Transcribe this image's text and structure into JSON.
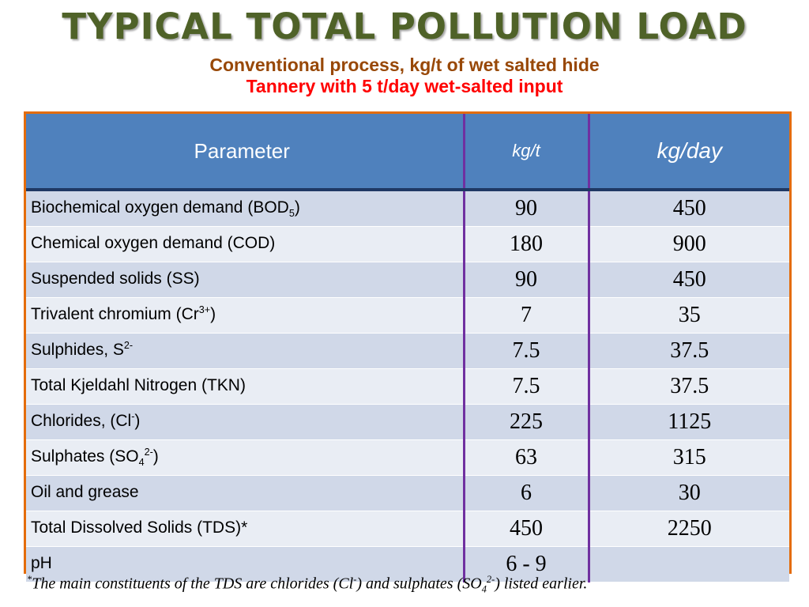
{
  "title": "TYPICAL TOTAL POLLUTION LOAD",
  "subtitle": "Conventional process, kg/t of wet salted hide",
  "subtitle2": "Tannery with 5 t/day wet-salted input",
  "colors": {
    "title": "#4f6228",
    "subtitle": "#984807",
    "subtitle2": "#ff0000",
    "table_border": "#e46c0a",
    "header_bg": "#4f81bd",
    "column_divider": "#7030a0",
    "row_odd": "#d0d8e8",
    "row_even": "#e9edf4"
  },
  "table": {
    "headers": {
      "parameter": "Parameter",
      "unit_t": "kg/t",
      "unit_day": "kg/day"
    },
    "rows": [
      {
        "name": "Biochemical oxygen demand (BOD",
        "sub": "5",
        "sup": "",
        "tail": ")",
        "kg_t": "90",
        "kg_day": "450"
      },
      {
        "name": "Chemical oxygen demand (COD)",
        "sub": "",
        "sup": "",
        "tail": "",
        "kg_t": "180",
        "kg_day": "900"
      },
      {
        "name": "Suspended solids (SS)",
        "sub": "",
        "sup": "",
        "tail": "",
        "kg_t": "90",
        "kg_day": "450"
      },
      {
        "name": "Trivalent chromium (Cr",
        "sub": "",
        "sup": "3+",
        "tail": ")",
        "kg_t": "7",
        "kg_day": "35"
      },
      {
        "name": "Sulphides, S",
        "sub": "",
        "sup": "2-",
        "tail": "",
        "kg_t": "7.5",
        "kg_day": "37.5"
      },
      {
        "name": "Total  Kjeldahl Nitrogen (TKN)",
        "sub": "",
        "sup": "",
        "tail": "",
        "kg_t": "7.5",
        "kg_day": "37.5"
      },
      {
        "name": "Chlorides,  (Cl",
        "sub": "",
        "sup": "-",
        "tail": ")",
        "kg_t": "225",
        "kg_day": "1125"
      },
      {
        "name": "Sulphates (SO",
        "sub": "4",
        "sup": "2-",
        "tail": ")",
        "kg_t": "63",
        "kg_day": "315"
      },
      {
        "name": "Oil and grease",
        "sub": "",
        "sup": "",
        "tail": "",
        "kg_t": "6",
        "kg_day": "30"
      },
      {
        "name": "Total Dissolved Solids (TDS)*",
        "sub": "",
        "sup": "",
        "tail": "",
        "kg_t": "450",
        "kg_day": "2250"
      },
      {
        "name": "pH",
        "sub": "",
        "sup": "",
        "tail": "",
        "kg_t": "6 - 9",
        "kg_day": ""
      }
    ]
  },
  "footnote": {
    "star": "*",
    "part1": "The main constituents of the TDS are chlorides (Cl",
    "sup1": "-",
    "part2": ") and sulphates (SO",
    "sub2": "4",
    "sup2": "2-",
    "part3": ") listed earlier."
  }
}
